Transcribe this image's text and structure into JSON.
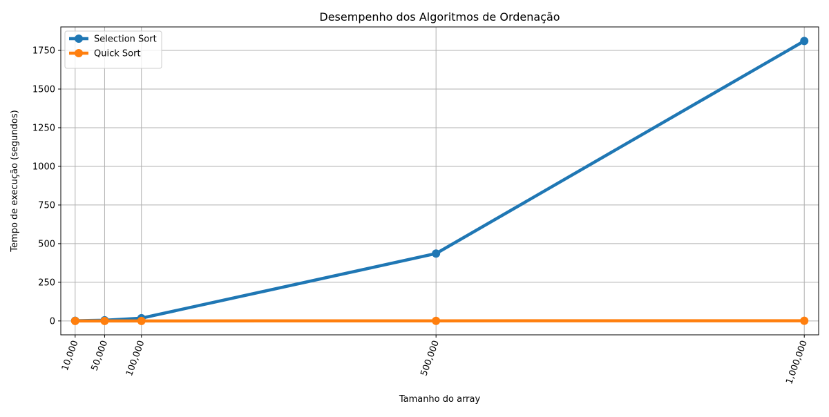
{
  "chart_data": {
    "type": "line",
    "title": "Desempenho dos Algoritmos de Ordenação",
    "xlabel": "Tamanho do array",
    "ylabel": "Tempo de execução (segundos)",
    "x": [
      10000,
      50000,
      100000,
      500000,
      1000000
    ],
    "x_tick_labels": [
      "10,000",
      "50,000",
      "100,000",
      "500,000",
      "1,000,000"
    ],
    "y_ticks": [
      0,
      250,
      500,
      750,
      1000,
      1250,
      1500,
      1750
    ],
    "y_tick_labels": [
      "0",
      "250",
      "500",
      "750",
      "1000",
      "1250",
      "1500",
      "1750"
    ],
    "xlim": [
      -9500,
      1019500
    ],
    "ylim": [
      -90,
      1902
    ],
    "grid": true,
    "legend_position": "upper-left",
    "series": [
      {
        "name": "Selection Sort",
        "color": "#1f77b4",
        "values": [
          1,
          4.5,
          18,
          436,
          1811
        ]
      },
      {
        "name": "Quick Sort",
        "color": "#ff7f0e",
        "values": [
          0.01,
          0.05,
          0.1,
          0.6,
          1.2
        ]
      }
    ]
  }
}
